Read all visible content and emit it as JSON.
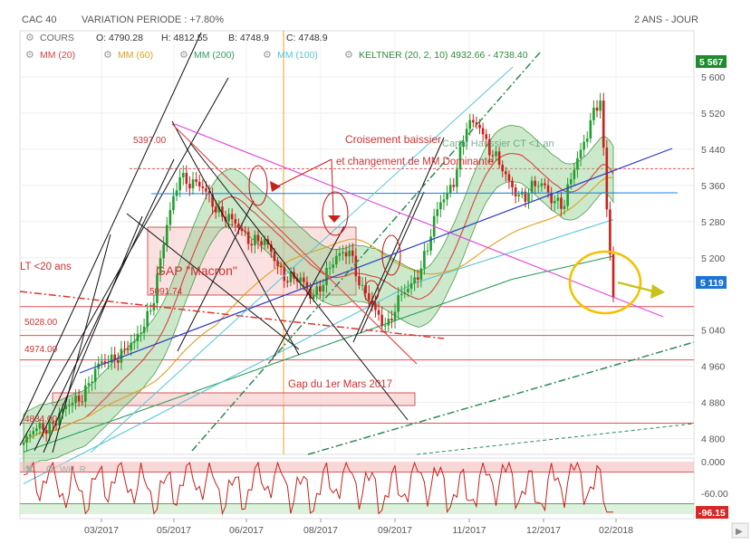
{
  "header": {
    "symbol": "CAC 40",
    "variation": "VARIATION PERIODE : +7.80%",
    "period": "2 ANS - JOUR"
  },
  "legend": {
    "row1": [
      {
        "label": "COURS",
        "color": "#666666"
      },
      {
        "label": "O: 4790.28",
        "color": "#333333"
      },
      {
        "label": "H: 4812.55",
        "color": "#333333"
      },
      {
        "label": "B: 4748.9",
        "color": "#333333"
      },
      {
        "label": "C: 4748.9",
        "color": "#333333"
      }
    ],
    "row2": [
      {
        "label": "MM (20)",
        "color": "#d64541"
      },
      {
        "label": "MM (60)",
        "color": "#e0a020"
      },
      {
        "label": "MM (200)",
        "color": "#2e9e5b"
      },
      {
        "label": "MM (100)",
        "color": "#56c6d8"
      },
      {
        "label": "KELTNER (20, 2, 10)  4932.66 - 4738.40",
        "color": "#2e8b3a"
      }
    ]
  },
  "chart_data": [
    {
      "type": "candlestick",
      "x_tick_labels": [
        "03/2017",
        "05/2017",
        "06/2017",
        "08/2017",
        "09/2017",
        "11/2017",
        "12/2017",
        "02/2018"
      ],
      "y_tick_labels": [
        "5 600",
        "5 520",
        "5 440",
        "5 360",
        "5 280",
        "5 200",
        "5 119",
        "5 040",
        "4 960",
        "4 880",
        "4 800"
      ],
      "ylim": [
        4760,
        5630
      ],
      "last_price_label": "5 119",
      "last_price_color": "#1e74d6",
      "top_price_label": "5 567",
      "top_price_color": "#1e8b2e",
      "series": [
        {
          "name": "MM (20)",
          "color": "#d64541"
        },
        {
          "name": "MM (60)",
          "color": "#e0a020"
        },
        {
          "name": "MM (200)",
          "color": "#2e9e5b"
        },
        {
          "name": "MM (100)",
          "color": "#56c6d8"
        }
      ],
      "levels": [
        {
          "label": "5397.00",
          "value": 5397
        },
        {
          "label": "5091.74",
          "value": 5091.74
        },
        {
          "label": "5028.00",
          "value": 5028
        },
        {
          "label": "4974.00",
          "value": 4974
        },
        {
          "label": "4834.00",
          "value": 4834
        }
      ],
      "annotations": [
        "Croisement baissier",
        "et changement de MM Dominante",
        "GAP \"Macron\"",
        "Gap du 1er Mars 2017",
        "LT <20 ans",
        "Canal Haussier CT <1 an"
      ]
    },
    {
      "type": "line",
      "name": "Will. R",
      "y_tick_labels": [
        "0.000",
        "-60.00"
      ],
      "ylim": [
        -100,
        0
      ],
      "last_value_label": "-96.15",
      "last_value_color": "#d62828"
    }
  ]
}
